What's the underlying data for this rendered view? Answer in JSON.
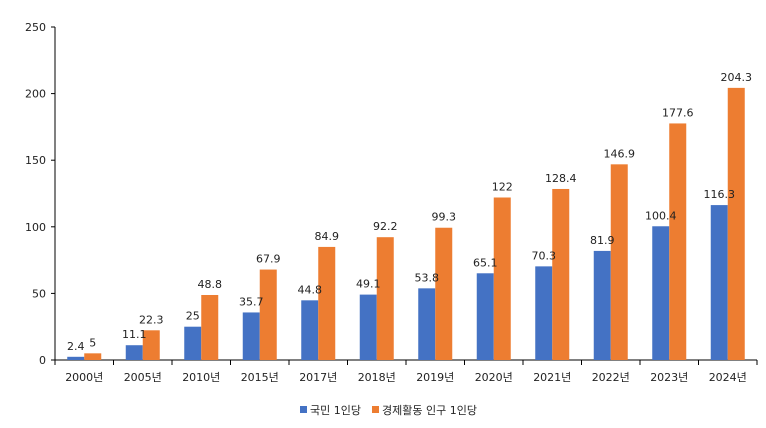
{
  "chart_data": {
    "type": "bar",
    "categories": [
      "2000년",
      "2005년",
      "2010년",
      "2015년",
      "2017년",
      "2018년",
      "2019년",
      "2020년",
      "2021년",
      "2022년",
      "2023년",
      "2024년"
    ],
    "series": [
      {
        "name": "국민 1인당",
        "color": "#4472c4",
        "values": [
          2.4,
          11.1,
          25,
          35.7,
          44.8,
          49.1,
          53.8,
          65.1,
          70.3,
          81.9,
          100.4,
          116.3
        ],
        "labels": [
          "2.4",
          "11.1",
          "25",
          "35.7",
          "44.8",
          "49.1",
          "53.8",
          "65.1",
          "70.3",
          "81.9",
          "100.4",
          "116.3"
        ]
      },
      {
        "name": "경제활동 인구 1인당",
        "color": "#ed7d31",
        "values": [
          5,
          22.3,
          48.8,
          67.9,
          84.9,
          92.2,
          99.3,
          122,
          128.4,
          146.9,
          177.6,
          204.3
        ],
        "labels": [
          "5",
          "22.3",
          "48.8",
          "67.9",
          "84.9",
          "92.2",
          "99.3",
          "122",
          "128.4",
          "146.9",
          "177.6",
          "204.3"
        ]
      }
    ],
    "yticks": [
      "0",
      "50",
      "100",
      "150",
      "200",
      "250"
    ],
    "ylim": [
      0,
      250
    ],
    "grid": false,
    "legend_position": "bottom-center"
  }
}
